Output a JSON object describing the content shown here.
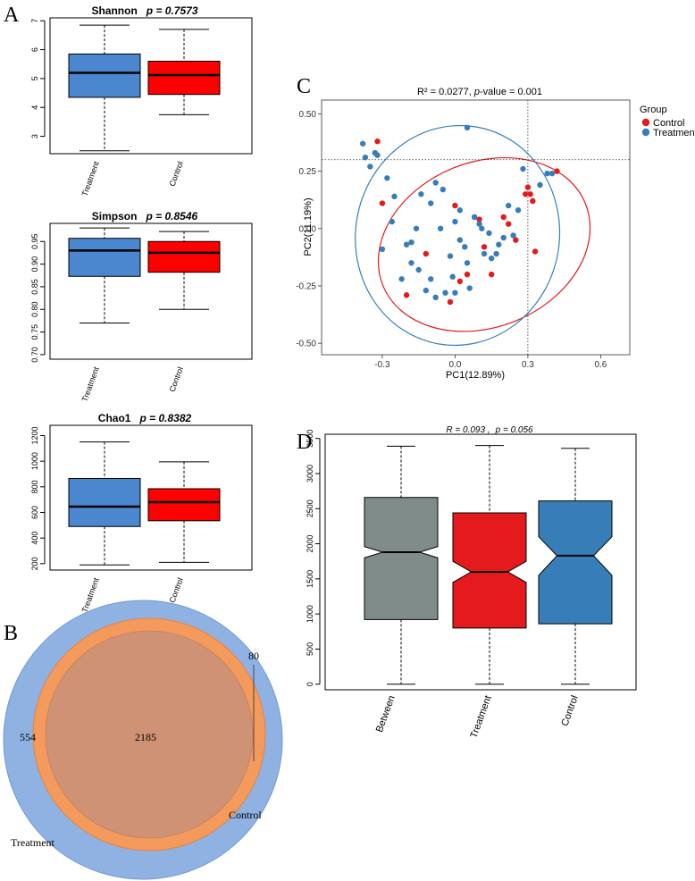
{
  "colors": {
    "treatment_box": "#4a87cf",
    "control_box": "#ff0000",
    "pca_control": "#e41a1c",
    "pca_treatment": "#377eb8",
    "venn_treatment": "#8fb2e3",
    "venn_control": "#f39a5c",
    "venn_overlap": "#cf9275",
    "between_box": "#7f8c8a",
    "d_treatment_box": "#e41a1c",
    "d_control_box": "#377eb8"
  },
  "panels": {
    "a": {
      "label": "A"
    },
    "b": {
      "label": "B"
    },
    "c": {
      "label": "C"
    },
    "d": {
      "label": "D"
    }
  },
  "chart_data": [
    {
      "id": "shannon",
      "type": "box",
      "title_name": "Shannon",
      "title_p": "p = 0.7573",
      "categories": [
        "Treatment",
        "Control"
      ],
      "ylim": [
        2.4,
        7.1
      ],
      "yticks": [
        3,
        4,
        5,
        6,
        7
      ],
      "yticklabels": [
        "3",
        "4",
        "5",
        "6",
        "7"
      ],
      "boxes": [
        {
          "min": 2.5,
          "q1": 4.35,
          "median": 5.2,
          "q3": 5.85,
          "max": 6.85
        },
        {
          "min": 3.75,
          "q1": 4.45,
          "median": 5.12,
          "q3": 5.6,
          "max": 6.7
        }
      ]
    },
    {
      "id": "simpson",
      "type": "box",
      "title_name": "Simpson",
      "title_p": "p = 0.8546",
      "categories": [
        "Treatment",
        "Control"
      ],
      "ylim": [
        0.69,
        0.99
      ],
      "yticks": [
        0.7,
        0.75,
        0.8,
        0.85,
        0.9,
        0.95
      ],
      "yticklabels": [
        "0.70",
        "0.75",
        "0.80",
        "0.85",
        "0.90",
        "0.95"
      ],
      "boxes": [
        {
          "min": 0.77,
          "q1": 0.873,
          "median": 0.93,
          "q3": 0.957,
          "max": 0.98
        },
        {
          "min": 0.8,
          "q1": 0.882,
          "median": 0.925,
          "q3": 0.95,
          "max": 0.972
        }
      ]
    },
    {
      "id": "chao1",
      "type": "box",
      "title_name": "Chao1",
      "title_p": "p = 0.8382",
      "categories": [
        "Treatment",
        "Control"
      ],
      "ylim": [
        150,
        1280
      ],
      "yticks": [
        200,
        400,
        600,
        800,
        1000,
        1200
      ],
      "yticklabels": [
        "200",
        "400",
        "600",
        "800",
        "1000",
        "1200"
      ],
      "boxes": [
        {
          "min": 190,
          "q1": 490,
          "median": 645,
          "q3": 865,
          "max": 1150
        },
        {
          "min": 210,
          "q1": 535,
          "median": 680,
          "q3": 785,
          "max": 995
        }
      ]
    },
    {
      "id": "venn",
      "type": "venn",
      "sets": [
        "Treatment",
        "Control"
      ],
      "only_treatment": "554",
      "shared": "2185",
      "only_control": "80"
    },
    {
      "id": "pca",
      "type": "scatter",
      "title_r2": "R² = 0.0277, ",
      "title_p_italic": "p",
      "title_p_rest": "-value = 0.001",
      "xlabel": "PC1(12.89%)",
      "ylabel": "PC2(11.19%)",
      "xlim": [
        -0.55,
        0.72
      ],
      "ylim": [
        -0.55,
        0.56
      ],
      "xticks": [
        -0.3,
        0.0,
        0.3,
        0.6
      ],
      "xticklabels": [
        "-0.3",
        "0.0",
        "0.3",
        "0.6"
      ],
      "yticks": [
        -0.5,
        -0.25,
        0.0,
        0.25,
        0.5
      ],
      "yticklabels": [
        "-0.50",
        "-0.25",
        "0.00",
        "0.25",
        "0.50"
      ],
      "ref_lines": {
        "x": 0.3,
        "y": 0.3
      },
      "legend_title": "Group",
      "legend": [
        "Control",
        "Treatment"
      ],
      "ellipses": [
        {
          "group": "Control",
          "cx": 0.12,
          "cy": -0.07,
          "rx": 0.45,
          "ry": 0.36,
          "angle_deg": 22
        },
        {
          "group": "Treatment",
          "cx": 0.01,
          "cy": -0.03,
          "rx": 0.42,
          "ry": 0.48,
          "angle_deg": -10
        }
      ],
      "series": [
        {
          "name": "Control",
          "x": [
            -0.32,
            -0.3,
            0.0,
            0.1,
            0.12,
            0.2,
            0.22,
            0.25,
            0.29,
            0.3,
            0.31,
            0.32,
            0.33,
            0.42,
            -0.2,
            -0.12,
            0.02,
            0.05,
            -0.02,
            0.15
          ],
          "y": [
            0.38,
            0.11,
            0.1,
            0.04,
            -0.08,
            0.05,
            0.02,
            -0.05,
            0.15,
            0.18,
            0.15,
            0.12,
            -0.1,
            0.25,
            -0.29,
            -0.11,
            -0.23,
            -0.2,
            -0.32,
            -0.2
          ]
        },
        {
          "name": "Treatment",
          "x": [
            -0.38,
            -0.37,
            -0.35,
            -0.33,
            -0.32,
            -0.28,
            -0.25,
            -0.2,
            -0.18,
            -0.15,
            -0.12,
            -0.1,
            -0.08,
            -0.05,
            -0.02,
            0.0,
            0.02,
            0.04,
            0.06,
            0.08,
            0.1,
            0.12,
            0.15,
            0.18,
            0.2,
            0.22,
            0.26,
            0.28,
            0.35,
            0.38,
            0.4,
            -0.22,
            -0.18,
            -0.16,
            -0.14,
            -0.1,
            -0.06,
            -0.04,
            -0.01,
            0.02,
            0.05,
            0.08,
            0.11,
            0.14,
            0.17,
            0.24,
            -0.3,
            -0.26,
            0.05,
            -0.08,
            0.0
          ],
          "y": [
            0.37,
            0.31,
            0.27,
            0.33,
            0.32,
            0.22,
            0.14,
            -0.07,
            -0.15,
            -0.18,
            -0.27,
            -0.22,
            0.2,
            0.17,
            -0.12,
            0.03,
            -0.05,
            -0.08,
            -0.26,
            0.05,
            0.02,
            -0.11,
            -0.13,
            -0.07,
            -0.04,
            0.1,
            0.08,
            0.26,
            0.19,
            0.24,
            0.24,
            -0.22,
            -0.06,
            0.0,
            0.15,
            0.11,
            0.0,
            -0.28,
            -0.21,
            0.08,
            -0.15,
            0.05,
            0.0,
            -0.02,
            -0.11,
            -0.03,
            -0.09,
            0.03,
            0.44,
            -0.3,
            -0.28
          ]
        }
      ]
    },
    {
      "id": "anosim",
      "type": "box",
      "notched": true,
      "title_r": "R = 0.093 ,",
      "title_p": "p = 0.056",
      "categories": [
        "Between",
        "Treatment",
        "Control"
      ],
      "ylim": [
        -80,
        3560
      ],
      "yticks": [
        0,
        500,
        1000,
        1500,
        2000,
        2500,
        3000,
        3500
      ],
      "yticklabels": [
        "0",
        "500",
        "1000",
        "1500",
        "2000",
        "2500",
        "3000",
        "3500"
      ],
      "boxes": [
        {
          "min": 0,
          "q1": 920,
          "median": 1880,
          "q3": 2660,
          "max": 3390,
          "notch_lo": 1800,
          "notch_hi": 1960
        },
        {
          "min": 0,
          "q1": 800,
          "median": 1600,
          "q3": 2440,
          "max": 3400,
          "notch_lo": 1450,
          "notch_hi": 1750
        },
        {
          "min": 0,
          "q1": 860,
          "median": 1830,
          "q3": 2610,
          "max": 3360,
          "notch_lo": 1550,
          "notch_hi": 2100
        }
      ]
    }
  ]
}
